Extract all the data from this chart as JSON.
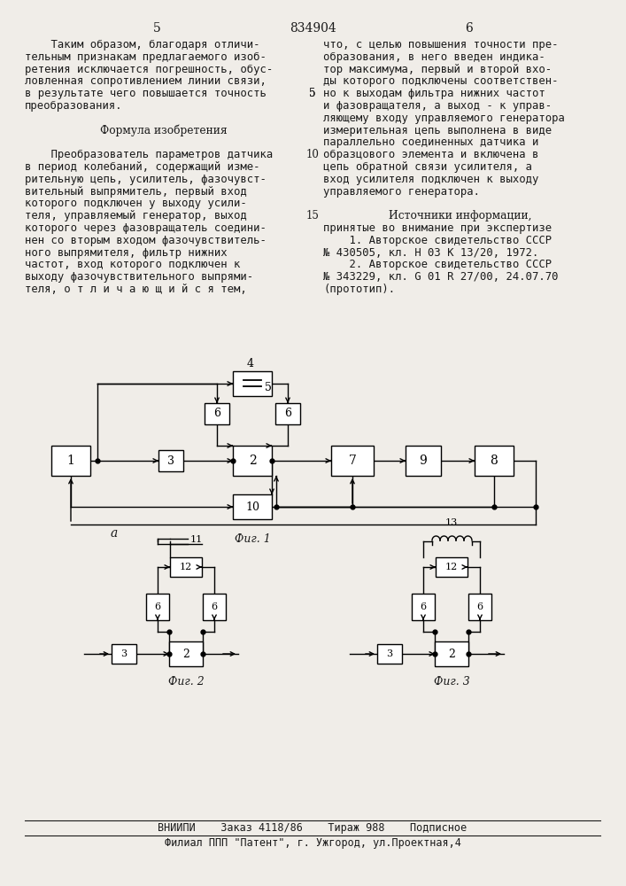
{
  "page_color": "#f0ede8",
  "text_color": "#1a1a1a",
  "title_number": "834904",
  "col_left": "5",
  "col_right": "6",
  "left_col_lines": [
    "    Таким образом, благодаря отличи-",
    "тельным признакам предлагаемого изоб-",
    "ретения исключается погрешность, обус-",
    "ловленная сопротивлением линии связи,",
    "в результате чего повышается точность",
    "преобразования.",
    "",
    "         Формула изобретения",
    "",
    "    Преобразователь параметров датчика",
    "в период колебаний, содержащий изме-",
    "рительную цепь, усилитель, фазочувст-",
    "вительный выпрямитель, первый вход",
    "которого подключен у выходу усили-",
    "теля, управляемый генератор, выход",
    "которого через фазовращатель соедини-",
    "нен со вторым входом фазочувствитель-",
    "ного выпрямителя, фильтр нижних",
    "частот, вход которого подключен к",
    "выходу фазочувствительного выпрями-",
    "теля, о т л и ч а ю щ и й с я тем,"
  ],
  "right_col_lines": [
    "что, с целью повышения точности пре-",
    "образования, в него введен индика-",
    "тор максимума, первый и второй вхо-",
    "ды которого подключены соответствен-",
    "но к выходам фильтра нижних частот",
    "и фазовращателя, а выход - к управ-",
    "ляющему входу управляемого генератора",
    "измерительная цепь выполнена в виде",
    "параллельно соединенных датчика и",
    "образцового элемента и включена в",
    "цепь обратной связи усилителя, а",
    "вход усилителя подключен к выходу",
    "управляемого генератора.",
    "",
    "         Источники информации,",
    "принятые во внимание при экспертизе",
    "    1. Авторское свидетельство СССР",
    "№ 430505, кл. Н 03 К 13/20, 1972.",
    "    2. Авторское свидетельство СССР",
    "№ 343229, кл. G 01 R 27/00, 24.07.70",
    "(прототип)."
  ],
  "fig1_label": "Фиг. 1",
  "fig2_label": "Фиг. 2",
  "fig3_label": "Фиг. 3",
  "fig2_sublabel": "а",
  "footer_line1": "ВНИИПИ    Заказ 4118/86    Тираж 988    Подписное",
  "footer_line2": "Филиал ППП \"Патент\", г. Ужгород, ул.Проектная,4"
}
